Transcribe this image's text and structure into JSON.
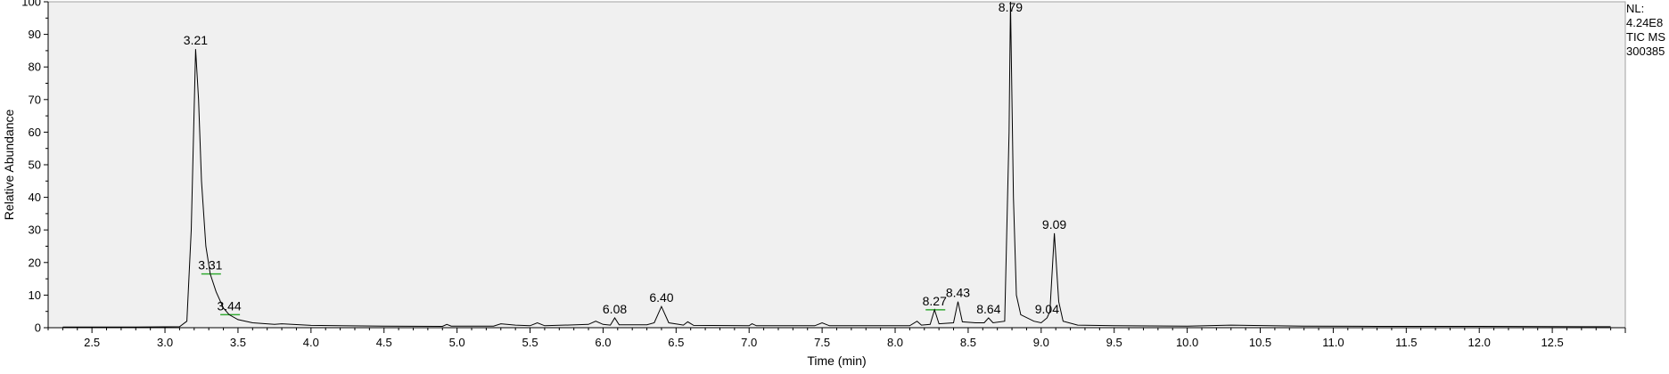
{
  "info": {
    "nl_label": "NL:",
    "nl_value": "4.24E8",
    "scan_filter": "TIC MS",
    "sample_id": "300385"
  },
  "colors": {
    "plot_background": "#f0f0f0",
    "trace": "#000000",
    "baseline_marker": "#33aa33"
  },
  "chart_data": {
    "type": "line",
    "xlabel": "Time (min)",
    "ylabel": "Relative Abundance",
    "xlim": [
      2.2,
      13.0
    ],
    "ylim": [
      0,
      100
    ],
    "xticks": [
      2.5,
      3.0,
      3.5,
      4.0,
      4.5,
      5.0,
      5.5,
      6.0,
      6.5,
      7.0,
      7.5,
      8.0,
      8.5,
      9.0,
      9.5,
      10.0,
      10.5,
      11.0,
      11.5,
      12.0,
      12.5
    ],
    "xtick_labels": [
      "2.5",
      "3.0",
      "3.5",
      "4.0",
      "4.5",
      "5.0",
      "5.5",
      "6.0",
      "6.5",
      "7.0",
      "7.5",
      "8.0",
      "8.5",
      "9.0",
      "9.5",
      "10.0",
      "10.5",
      "11.0",
      "11.5",
      "12.0",
      "12.5"
    ],
    "yticks": [
      0,
      10,
      20,
      30,
      40,
      50,
      60,
      70,
      80,
      90,
      100
    ],
    "ytick_labels": [
      "0",
      "10",
      "20",
      "30",
      "40",
      "50",
      "60",
      "70",
      "80",
      "90",
      "100"
    ],
    "grid": false,
    "peak_labels": [
      {
        "x": 3.21,
        "y": 85.5,
        "label": "3.21"
      },
      {
        "x": 3.31,
        "y": 16.5,
        "label": "3.31"
      },
      {
        "x": 3.44,
        "y": 4.0,
        "label": "3.44"
      },
      {
        "x": 6.08,
        "y": 3.0,
        "label": "6.08"
      },
      {
        "x": 6.4,
        "y": 6.5,
        "label": "6.40"
      },
      {
        "x": 8.27,
        "y": 5.5,
        "label": "8.27"
      },
      {
        "x": 8.43,
        "y": 8.0,
        "label": "8.43"
      },
      {
        "x": 8.64,
        "y": 3.0,
        "label": "8.64"
      },
      {
        "x": 8.79,
        "y": 100,
        "label": "8.79"
      },
      {
        "x": 9.04,
        "y": 3.0,
        "label": "9.04"
      },
      {
        "x": 9.09,
        "y": 29.0,
        "label": "9.09"
      }
    ],
    "series": [
      {
        "values": [
          [
            2.3,
            0.2
          ],
          [
            2.8,
            0.2
          ],
          [
            3.1,
            0.3
          ],
          [
            3.15,
            2.0
          ],
          [
            3.18,
            30.0
          ],
          [
            3.21,
            85.5
          ],
          [
            3.23,
            70.0
          ],
          [
            3.25,
            45.0
          ],
          [
            3.28,
            25.0
          ],
          [
            3.31,
            16.5
          ],
          [
            3.35,
            11.0
          ],
          [
            3.4,
            6.0
          ],
          [
            3.44,
            4.0
          ],
          [
            3.5,
            2.5
          ],
          [
            3.6,
            1.5
          ],
          [
            3.75,
            1.0
          ],
          [
            3.8,
            1.2
          ],
          [
            4.0,
            0.7
          ],
          [
            4.5,
            0.5
          ],
          [
            4.9,
            0.4
          ],
          [
            4.93,
            1.0
          ],
          [
            4.96,
            0.5
          ],
          [
            5.25,
            0.5
          ],
          [
            5.3,
            1.2
          ],
          [
            5.4,
            0.8
          ],
          [
            5.5,
            0.6
          ],
          [
            5.55,
            1.5
          ],
          [
            5.6,
            0.6
          ],
          [
            5.9,
            1.0
          ],
          [
            5.95,
            2.0
          ],
          [
            6.0,
            1.0
          ],
          [
            6.05,
            0.8
          ],
          [
            6.08,
            3.0
          ],
          [
            6.11,
            0.9
          ],
          [
            6.3,
            0.9
          ],
          [
            6.35,
            1.5
          ],
          [
            6.4,
            6.5
          ],
          [
            6.45,
            1.5
          ],
          [
            6.55,
            0.8
          ],
          [
            6.58,
            1.8
          ],
          [
            6.62,
            0.7
          ],
          [
            7.0,
            0.6
          ],
          [
            7.02,
            1.2
          ],
          [
            7.05,
            0.6
          ],
          [
            7.45,
            0.6
          ],
          [
            7.5,
            1.5
          ],
          [
            7.55,
            0.6
          ],
          [
            8.1,
            0.6
          ],
          [
            8.15,
            2.0
          ],
          [
            8.18,
            0.8
          ],
          [
            8.24,
            1.0
          ],
          [
            8.27,
            5.5
          ],
          [
            8.3,
            1.2
          ],
          [
            8.4,
            1.5
          ],
          [
            8.43,
            8.0
          ],
          [
            8.46,
            1.8
          ],
          [
            8.55,
            1.5
          ],
          [
            8.61,
            1.5
          ],
          [
            8.64,
            3.0
          ],
          [
            8.67,
            1.5
          ],
          [
            8.75,
            2.0
          ],
          [
            8.78,
            60.0
          ],
          [
            8.79,
            100.0
          ],
          [
            8.81,
            40.0
          ],
          [
            8.83,
            10.0
          ],
          [
            8.86,
            4.0
          ],
          [
            8.95,
            2.0
          ],
          [
            9.0,
            1.5
          ],
          [
            9.04,
            3.0
          ],
          [
            9.06,
            5.0
          ],
          [
            9.09,
            29.0
          ],
          [
            9.12,
            8.0
          ],
          [
            9.15,
            2.0
          ],
          [
            9.25,
            0.8
          ],
          [
            9.5,
            0.6
          ],
          [
            10.0,
            0.5
          ],
          [
            10.3,
            0.8
          ],
          [
            10.8,
            0.5
          ],
          [
            11.3,
            0.4
          ],
          [
            12.0,
            0.4
          ],
          [
            12.9,
            0.3
          ]
        ]
      }
    ]
  }
}
